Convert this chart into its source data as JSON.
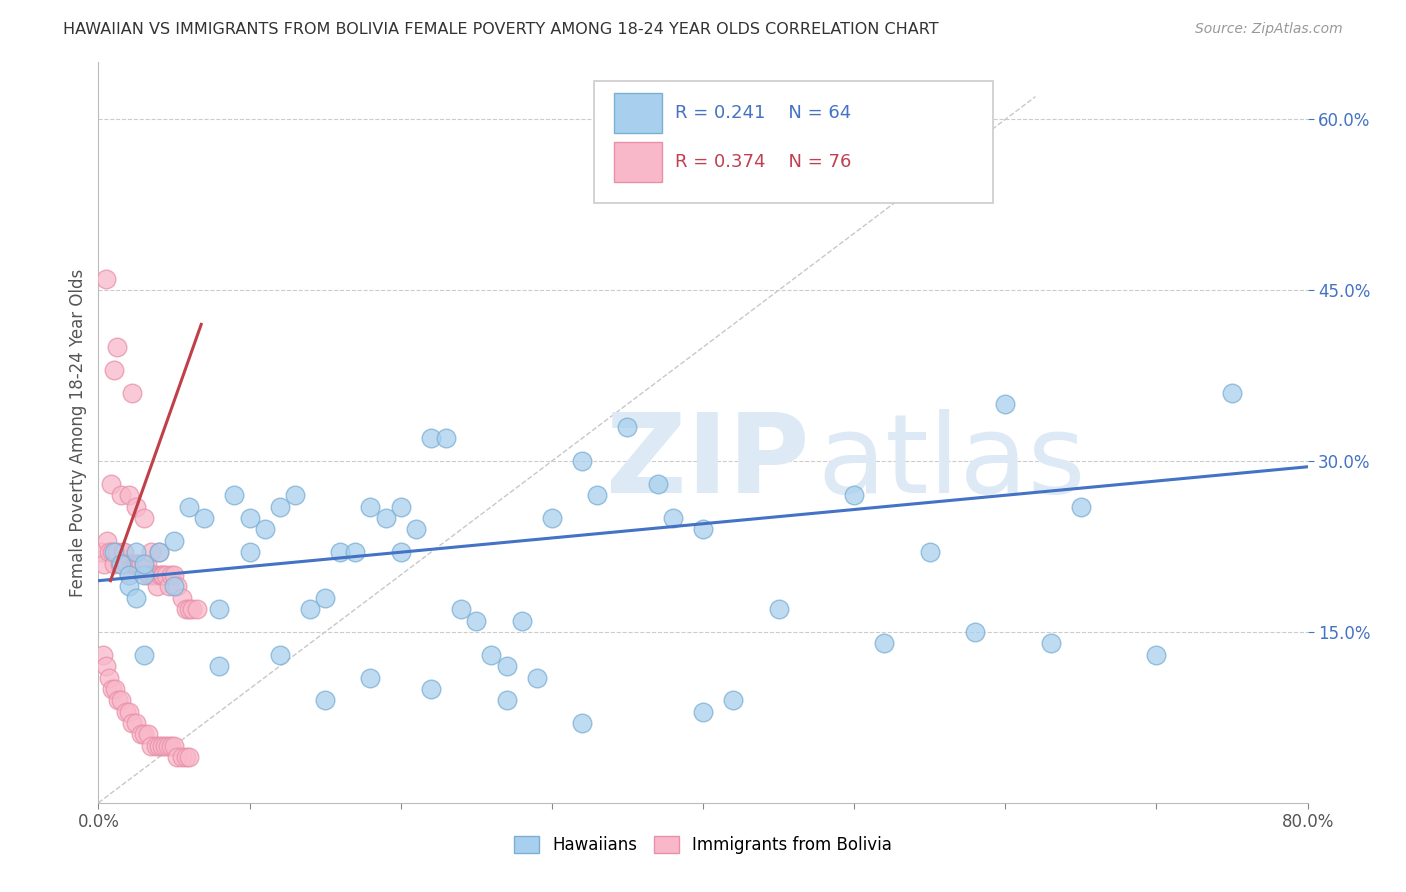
{
  "title": "HAWAIIAN VS IMMIGRANTS FROM BOLIVIA FEMALE POVERTY AMONG 18-24 YEAR OLDS CORRELATION CHART",
  "source": "Source: ZipAtlas.com",
  "ylabel": "Female Poverty Among 18-24 Year Olds",
  "ytick_labels": [
    "15.0%",
    "30.0%",
    "45.0%",
    "60.0%"
  ],
  "ytick_values": [
    0.15,
    0.3,
    0.45,
    0.6
  ],
  "xlim": [
    0.0,
    0.8
  ],
  "ylim": [
    0.0,
    0.65
  ],
  "legend_r1": "0.241",
  "legend_n1": "64",
  "legend_r2": "0.374",
  "legend_n2": "76",
  "hawaiian_color": "#A8D0EE",
  "hawaii_edge_color": "#7AAFD4",
  "bolivia_color": "#F9B8CA",
  "bolivia_edge_color": "#E890A8",
  "trend_hawaii_color": "#4472C4",
  "trend_bolivia_color": "#C0404A",
  "diag_color": "#C8C8C8",
  "watermark_color": "#DDEAF5",
  "hawaiian_x": [
    0.01,
    0.015,
    0.02,
    0.02,
    0.025,
    0.025,
    0.03,
    0.03,
    0.04,
    0.05,
    0.06,
    0.07,
    0.08,
    0.09,
    0.1,
    0.1,
    0.11,
    0.12,
    0.13,
    0.14,
    0.15,
    0.16,
    0.17,
    0.18,
    0.19,
    0.2,
    0.2,
    0.21,
    0.22,
    0.23,
    0.24,
    0.25,
    0.26,
    0.27,
    0.28,
    0.29,
    0.3,
    0.32,
    0.33,
    0.35,
    0.37,
    0.38,
    0.4,
    0.42,
    0.45,
    0.5,
    0.52,
    0.55,
    0.58,
    0.6,
    0.63,
    0.65,
    0.7,
    0.75,
    0.03,
    0.05,
    0.08,
    0.12,
    0.15,
    0.18,
    0.22,
    0.27,
    0.32,
    0.4
  ],
  "hawaiian_y": [
    0.22,
    0.21,
    0.2,
    0.19,
    0.22,
    0.18,
    0.2,
    0.21,
    0.22,
    0.23,
    0.26,
    0.25,
    0.17,
    0.27,
    0.25,
    0.22,
    0.24,
    0.26,
    0.27,
    0.17,
    0.18,
    0.22,
    0.22,
    0.26,
    0.25,
    0.26,
    0.22,
    0.24,
    0.32,
    0.32,
    0.17,
    0.16,
    0.13,
    0.12,
    0.16,
    0.11,
    0.25,
    0.3,
    0.27,
    0.33,
    0.28,
    0.25,
    0.24,
    0.09,
    0.17,
    0.27,
    0.14,
    0.22,
    0.15,
    0.35,
    0.14,
    0.26,
    0.13,
    0.36,
    0.13,
    0.19,
    0.12,
    0.13,
    0.09,
    0.11,
    0.1,
    0.09,
    0.07,
    0.08
  ],
  "bolivia_x": [
    0.002,
    0.004,
    0.005,
    0.006,
    0.007,
    0.008,
    0.009,
    0.01,
    0.01,
    0.012,
    0.012,
    0.014,
    0.015,
    0.016,
    0.017,
    0.018,
    0.019,
    0.02,
    0.02,
    0.022,
    0.022,
    0.024,
    0.025,
    0.025,
    0.026,
    0.027,
    0.028,
    0.03,
    0.03,
    0.032,
    0.033,
    0.034,
    0.035,
    0.036,
    0.038,
    0.039,
    0.04,
    0.041,
    0.042,
    0.043,
    0.045,
    0.047,
    0.048,
    0.05,
    0.052,
    0.055,
    0.058,
    0.06,
    0.062,
    0.065,
    0.003,
    0.005,
    0.007,
    0.009,
    0.011,
    0.013,
    0.015,
    0.018,
    0.02,
    0.022,
    0.025,
    0.028,
    0.03,
    0.033,
    0.035,
    0.038,
    0.04,
    0.042,
    0.044,
    0.046,
    0.048,
    0.05,
    0.052,
    0.055,
    0.058,
    0.06
  ],
  "bolivia_y": [
    0.22,
    0.21,
    0.46,
    0.23,
    0.22,
    0.28,
    0.22,
    0.21,
    0.38,
    0.22,
    0.4,
    0.21,
    0.27,
    0.22,
    0.22,
    0.21,
    0.21,
    0.27,
    0.2,
    0.21,
    0.36,
    0.21,
    0.26,
    0.21,
    0.21,
    0.21,
    0.21,
    0.25,
    0.21,
    0.21,
    0.2,
    0.2,
    0.22,
    0.2,
    0.2,
    0.19,
    0.22,
    0.2,
    0.2,
    0.2,
    0.2,
    0.19,
    0.2,
    0.2,
    0.19,
    0.18,
    0.17,
    0.17,
    0.17,
    0.17,
    0.13,
    0.12,
    0.11,
    0.1,
    0.1,
    0.09,
    0.09,
    0.08,
    0.08,
    0.07,
    0.07,
    0.06,
    0.06,
    0.06,
    0.05,
    0.05,
    0.05,
    0.05,
    0.05,
    0.05,
    0.05,
    0.05,
    0.04,
    0.04,
    0.04,
    0.04
  ]
}
